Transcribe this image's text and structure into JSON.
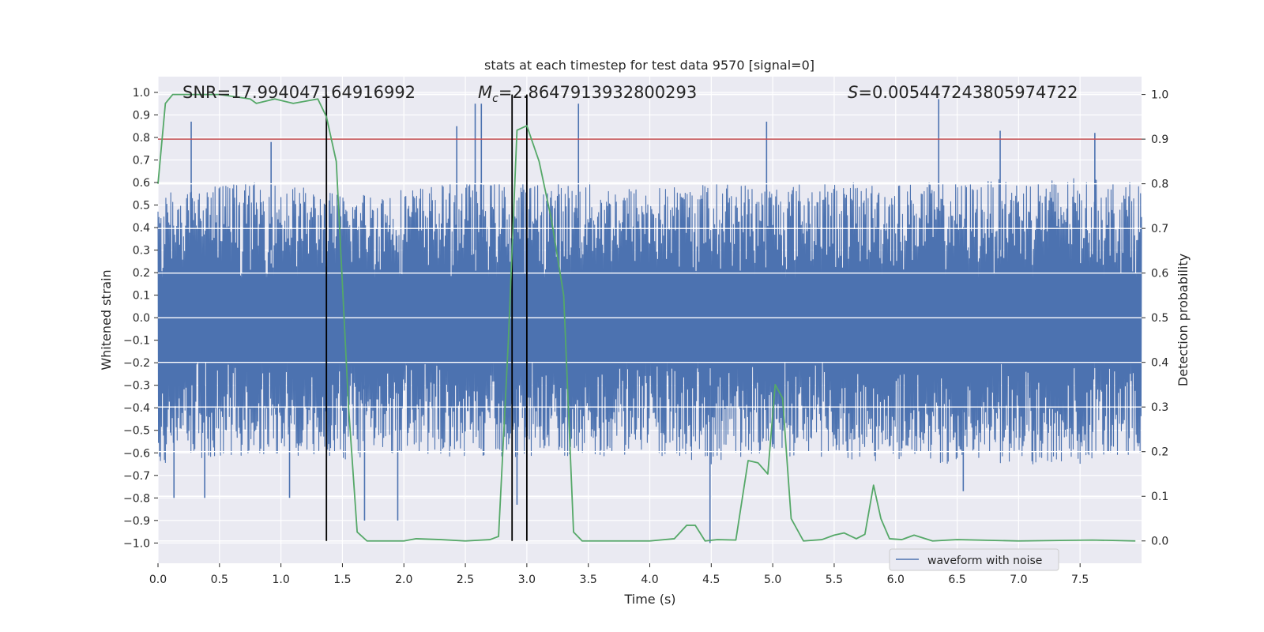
{
  "chart_data": {
    "type": "line",
    "title": "stats at each timestep for test data 9570 [signal=0]",
    "xlabel": "Time (s)",
    "ylabel": "Whitened strain",
    "y2label": "Detection probability",
    "xlim": [
      0.0,
      8.0
    ],
    "ylim": [
      -1.09,
      1.07
    ],
    "y2lim": [
      -0.05,
      1.04
    ],
    "x_ticks": [
      0.0,
      0.5,
      1.0,
      1.5,
      2.0,
      2.5,
      3.0,
      3.5,
      4.0,
      4.5,
      5.0,
      5.5,
      6.0,
      6.5,
      7.0,
      7.5
    ],
    "x_tick_labels": [
      "0.0",
      "0.5",
      "1.0",
      "1.5",
      "2.0",
      "2.5",
      "3.0",
      "3.5",
      "4.0",
      "4.5",
      "5.0",
      "5.5",
      "6.0",
      "6.5",
      "7.0",
      "7.5"
    ],
    "y_ticks": [
      1.0,
      0.9,
      0.8,
      0.7,
      0.6,
      0.5,
      0.4,
      0.3,
      0.2,
      0.1,
      0.0,
      -0.1,
      -0.2,
      -0.3,
      -0.4,
      -0.5,
      -0.6,
      -0.7,
      -0.8,
      -0.9,
      -1.0
    ],
    "y_tick_labels": [
      "1.0",
      "0.9",
      "0.8",
      "0.7",
      "0.6",
      "0.5",
      "0.4",
      "0.3",
      "0.2",
      "0.1",
      "0.0",
      "−0.1",
      "−0.2",
      "−0.3",
      "−0.4",
      "−0.5",
      "−0.6",
      "−0.7",
      "−0.8",
      "−0.9",
      "−1.0"
    ],
    "y2_ticks": [
      1.0,
      0.9,
      0.8,
      0.7,
      0.6,
      0.5,
      0.4,
      0.3,
      0.2,
      0.1,
      0.0
    ],
    "y2_tick_labels": [
      "1.0",
      "0.9",
      "0.8",
      "0.7",
      "0.6",
      "0.5",
      "0.4",
      "0.3",
      "0.2",
      "0.1",
      "0.0"
    ],
    "annotations": {
      "snr": "SNR=17.994047164916992",
      "mc_symbol": "M",
      "mc_sub": "c",
      "mc_value": "=2.8647913932800293",
      "s_symbol": "S",
      "s_value": "=0.005447243805974722"
    },
    "threshold": {
      "value": 0.9,
      "axis": "y2",
      "color": "#c44e52"
    },
    "vertical_markers": [
      1.37,
      2.88,
      3.0
    ],
    "legend": {
      "label": "waveform with noise",
      "location": "lower-right"
    },
    "colors": {
      "background": "#eaeaf2",
      "grid": "#ffffff",
      "waveform": "#4c72b0",
      "probability": "#55a868",
      "threshold": "#c44e52",
      "marker": "#000000"
    },
    "series": [
      {
        "name": "Detection probability",
        "axis": "y2",
        "x": [
          0.0,
          0.06,
          0.12,
          0.25,
          0.5,
          0.75,
          0.8,
          0.95,
          1.1,
          1.3,
          1.37,
          1.45,
          1.55,
          1.62,
          1.7,
          1.85,
          2.0,
          2.1,
          2.3,
          2.5,
          2.7,
          2.77,
          2.85,
          2.92,
          3.0,
          3.1,
          3.2,
          3.3,
          3.38,
          3.45,
          3.6,
          4.0,
          4.2,
          4.3,
          4.37,
          4.45,
          4.55,
          4.7,
          4.8,
          4.88,
          4.96,
          5.02,
          5.08,
          5.15,
          5.25,
          5.4,
          5.5,
          5.58,
          5.68,
          5.75,
          5.82,
          5.88,
          5.95,
          6.05,
          6.15,
          6.3,
          6.5,
          7.0,
          7.6,
          7.95
        ],
        "y": [
          0.8,
          0.98,
          1.0,
          1.0,
          1.0,
          0.99,
          0.98,
          0.99,
          0.98,
          0.99,
          0.95,
          0.85,
          0.3,
          0.02,
          0.0,
          0.0,
          0.0,
          0.005,
          0.003,
          0.0,
          0.003,
          0.01,
          0.45,
          0.92,
          0.93,
          0.85,
          0.72,
          0.55,
          0.02,
          0.0,
          0.0,
          0.0,
          0.005,
          0.035,
          0.035,
          0.0,
          0.003,
          0.002,
          0.18,
          0.175,
          0.15,
          0.35,
          0.32,
          0.05,
          0.0,
          0.003,
          0.013,
          0.018,
          0.005,
          0.015,
          0.125,
          0.05,
          0.005,
          0.003,
          0.013,
          0.0,
          0.003,
          0.0,
          0.002,
          0.0
        ]
      }
    ],
    "waveform_envelope": {
      "name": "waveform with noise",
      "axis": "y",
      "x": [
        0.0,
        0.5,
        1.0,
        1.5,
        2.0,
        2.5,
        3.0,
        3.5,
        4.0,
        4.5,
        5.0,
        5.5,
        6.0,
        6.5,
        7.0,
        7.5,
        8.0
      ],
      "upper": [
        0.55,
        0.6,
        0.6,
        0.55,
        0.58,
        0.6,
        0.6,
        0.6,
        0.58,
        0.6,
        0.6,
        0.6,
        0.6,
        0.6,
        0.62,
        0.62,
        0.6
      ],
      "lower": [
        -0.65,
        -0.62,
        -0.6,
        -0.65,
        -0.6,
        -0.62,
        -0.62,
        -0.62,
        -0.62,
        -0.65,
        -0.62,
        -0.62,
        -0.65,
        -0.65,
        -0.65,
        -0.65,
        -0.6
      ],
      "peaks_up": [
        {
          "x": 0.27,
          "y": 0.87
        },
        {
          "x": 0.92,
          "y": 0.78
        },
        {
          "x": 2.43,
          "y": 0.85
        },
        {
          "x": 2.58,
          "y": 0.95
        },
        {
          "x": 2.63,
          "y": 0.95
        },
        {
          "x": 3.42,
          "y": 0.95
        },
        {
          "x": 4.95,
          "y": 0.87
        },
        {
          "x": 6.35,
          "y": 0.97
        },
        {
          "x": 6.85,
          "y": 0.83
        },
        {
          "x": 7.62,
          "y": 0.82
        }
      ],
      "peaks_down": [
        {
          "x": 0.13,
          "y": -0.8
        },
        {
          "x": 0.38,
          "y": -0.8
        },
        {
          "x": 1.07,
          "y": -0.8
        },
        {
          "x": 1.68,
          "y": -0.9
        },
        {
          "x": 1.95,
          "y": -0.9
        },
        {
          "x": 2.92,
          "y": -0.83
        },
        {
          "x": 4.49,
          "y": -1.0
        },
        {
          "x": 6.55,
          "y": -0.77
        }
      ]
    }
  }
}
